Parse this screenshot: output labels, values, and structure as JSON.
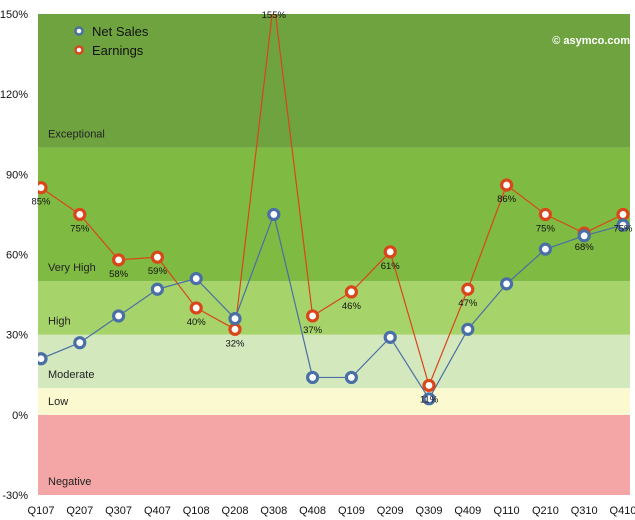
{
  "chart_data": {
    "type": "line",
    "title": "",
    "xlabel": "",
    "ylabel": "",
    "categories": [
      "Q107",
      "Q207",
      "Q307",
      "Q407",
      "Q108",
      "Q208",
      "Q308",
      "Q408",
      "Q109",
      "Q209",
      "Q309",
      "Q409",
      "Q110",
      "Q210",
      "Q310",
      "Q410"
    ],
    "ylim": [
      -30,
      150
    ],
    "yticks": [
      -30,
      0,
      30,
      60,
      90,
      120,
      150
    ],
    "ytick_labels": [
      "-30%",
      "0%",
      "30%",
      "60%",
      "90%",
      "120%",
      "150%"
    ],
    "grid": false,
    "legend_position": "top-left",
    "series": [
      {
        "name": "Net Sales",
        "color": "#4a6fa5",
        "values": [
          21,
          27,
          37,
          47,
          51,
          36,
          75,
          14,
          14,
          29,
          6,
          32,
          49,
          62,
          67,
          71
        ],
        "data_labels": null
      },
      {
        "name": "Earnings",
        "color": "#d9461a",
        "values": [
          85,
          75,
          58,
          59,
          40,
          32,
          155,
          37,
          46,
          61,
          11,
          47,
          86,
          75,
          68,
          75
        ],
        "data_labels": [
          "85%",
          "75%",
          "58%",
          "59%",
          "40%",
          "32%",
          "155%",
          "37%",
          "46%",
          "61%",
          "11%",
          "47%",
          "86%",
          "75%",
          "68%",
          "75%"
        ]
      }
    ],
    "bands": [
      {
        "label": "Negative",
        "from": -30,
        "to": 0,
        "color": "#f4a6a6"
      },
      {
        "label": "Low",
        "from": 0,
        "to": 10,
        "color": "#fbf9cf"
      },
      {
        "label": "Moderate",
        "from": 10,
        "to": 30,
        "color": "#d3e8bd"
      },
      {
        "label": "High",
        "from": 30,
        "to": 50,
        "color": "#a6d46a"
      },
      {
        "label": "Very High",
        "from": 50,
        "to": 100,
        "color": "#7fba42"
      },
      {
        "label": "Exceptional",
        "from": 100,
        "to": 150,
        "color": "#6ea33f"
      }
    ],
    "watermark": "© asymco.com"
  }
}
